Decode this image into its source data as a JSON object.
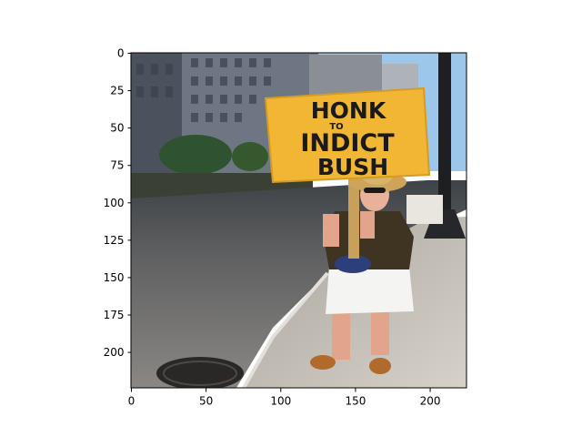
{
  "image": {
    "description_visible_sign": {
      "line1": "HONK",
      "line2": "TO",
      "line3": "INDICT",
      "line4": "BUSH"
    }
  },
  "axes": {
    "x_ticks": [
      "0",
      "50",
      "100",
      "150",
      "200"
    ],
    "y_ticks": [
      "0",
      "25",
      "50",
      "75",
      "100",
      "125",
      "150",
      "175",
      "200"
    ],
    "x_tick_values": [
      0,
      50,
      100,
      150,
      200
    ],
    "y_tick_values": [
      0,
      25,
      50,
      75,
      100,
      125,
      150,
      175,
      200
    ],
    "xlim": [
      0,
      224
    ],
    "ylim": [
      224,
      0
    ]
  },
  "colors": {
    "sign_yellow": "#f0b634",
    "sky": "#9cc6ea",
    "asphalt": "#6f6d6c",
    "sidewalk": "#bdb7ae",
    "building": "#5b6470"
  }
}
